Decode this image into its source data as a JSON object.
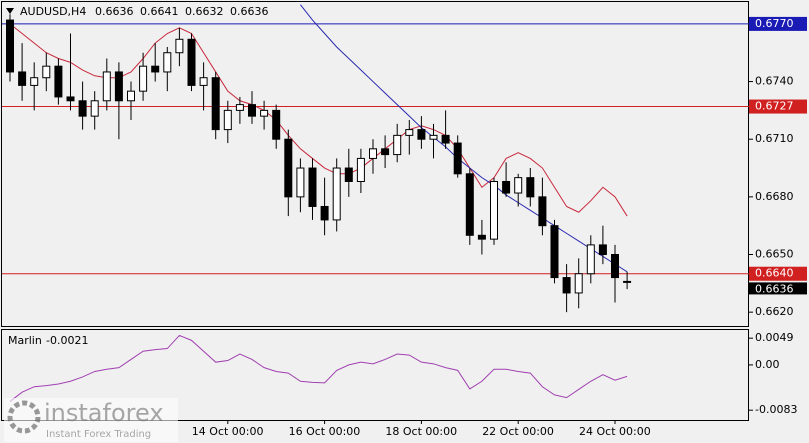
{
  "chart_data": {
    "type": "candlestick",
    "symbol": "AUDUSD,H4",
    "categories": [
      null,
      null,
      null,
      null,
      null,
      null,
      null,
      null,
      null,
      null,
      null,
      null,
      null,
      null,
      null,
      null,
      null,
      null,
      "14 Oct 00:00",
      null,
      null,
      null,
      null,
      null,
      null,
      null,
      "16 Oct 00:00",
      null,
      null,
      null,
      null,
      null,
      null,
      null,
      "18 Oct 00:00",
      null,
      null,
      null,
      null,
      null,
      null,
      null,
      "22 Oct 00:00",
      null,
      null,
      null,
      null,
      null,
      null,
      null,
      "24 Oct 00:00",
      null
    ],
    "open": [
      0.6772,
      0.6745,
      0.6738,
      0.6742,
      0.6748,
      0.6732,
      0.673,
      0.6722,
      0.673,
      0.6745,
      0.673,
      0.6735,
      0.6748,
      0.6745,
      0.6755,
      0.6762,
      0.6738,
      0.6742,
      0.6715,
      0.6725,
      0.6728,
      0.6722,
      0.6725,
      0.671,
      0.668,
      0.6695,
      0.6675,
      0.6668,
      0.6695,
      0.6688,
      0.67,
      0.6705,
      0.6702,
      0.6712,
      0.6715,
      0.671,
      0.6712,
      0.6708,
      0.6692,
      0.666,
      0.6658,
      0.6688,
      0.6682,
      0.669,
      0.668,
      0.6665,
      0.6638,
      0.663,
      0.664,
      0.6655,
      0.665,
      0.6636
    ],
    "high": [
      0.6775,
      0.676,
      0.675,
      0.6755,
      0.6752,
      0.6765,
      0.674,
      0.6735,
      0.6752,
      0.675,
      0.674,
      0.6755,
      0.676,
      0.6758,
      0.6768,
      0.6765,
      0.675,
      0.6745,
      0.673,
      0.6732,
      0.6735,
      0.673,
      0.6728,
      0.6715,
      0.67,
      0.67,
      0.669,
      0.67,
      0.6705,
      0.6705,
      0.671,
      0.6712,
      0.6718,
      0.672,
      0.6722,
      0.6718,
      0.6725,
      0.6712,
      0.6695,
      0.6668,
      0.669,
      0.6698,
      0.6692,
      0.6695,
      0.669,
      0.6668,
      0.6645,
      0.6648,
      0.666,
      0.6665,
      0.6655,
      0.6641
    ],
    "low": [
      0.674,
      0.673,
      0.6725,
      0.6735,
      0.6728,
      0.6725,
      0.6715,
      0.6715,
      0.6725,
      0.671,
      0.672,
      0.673,
      0.674,
      0.6735,
      0.6748,
      0.6735,
      0.6725,
      0.671,
      0.6708,
      0.6718,
      0.6718,
      0.6715,
      0.6705,
      0.667,
      0.6672,
      0.6668,
      0.666,
      0.6662,
      0.668,
      0.6682,
      0.6692,
      0.6695,
      0.6698,
      0.6702,
      0.6705,
      0.67,
      0.6705,
      0.669,
      0.6655,
      0.665,
      0.6655,
      0.668,
      0.6675,
      0.6675,
      0.666,
      0.6635,
      0.662,
      0.6622,
      0.6635,
      0.6645,
      0.6625,
      0.6632
    ],
    "close": [
      0.6745,
      0.6738,
      0.6742,
      0.6748,
      0.6732,
      0.673,
      0.6722,
      0.673,
      0.6745,
      0.673,
      0.6735,
      0.6748,
      0.6745,
      0.6755,
      0.6762,
      0.6738,
      0.6742,
      0.6715,
      0.6725,
      0.6728,
      0.6722,
      0.6725,
      0.671,
      0.668,
      0.6695,
      0.6675,
      0.6668,
      0.6695,
      0.6688,
      0.67,
      0.6705,
      0.6702,
      0.6712,
      0.6715,
      0.671,
      0.6712,
      0.6708,
      0.6692,
      0.666,
      0.6658,
      0.6688,
      0.6682,
      0.669,
      0.668,
      0.6665,
      0.6638,
      0.663,
      0.664,
      0.6655,
      0.665,
      0.6638,
      0.6636
    ],
    "lines": [
      {
        "color": "#c8283c",
        "values": [
          0.677,
          0.6765,
          0.676,
          0.6755,
          0.6752,
          0.675,
          0.6746,
          0.6743,
          0.6742,
          0.6742,
          0.6745,
          0.6752,
          0.676,
          0.6765,
          0.6768,
          0.6765,
          0.6755,
          0.6745,
          0.6735,
          0.673,
          0.6728,
          0.6725,
          0.672,
          0.6712,
          0.6705,
          0.67,
          0.6695,
          0.6692,
          0.6692,
          0.6695,
          0.67,
          0.6705,
          0.671,
          0.6715,
          0.6717,
          0.6715,
          0.6712,
          0.6705,
          0.6695,
          0.6685,
          0.669,
          0.67,
          0.6703,
          0.67,
          0.6695,
          0.6685,
          0.6675,
          0.6672,
          0.6678,
          0.6685,
          0.668,
          0.667
        ]
      },
      {
        "color": "#2a2ab0",
        "values": [
          null,
          null,
          null,
          null,
          null,
          null,
          null,
          null,
          null,
          null,
          null,
          null,
          null,
          null,
          null,
          null,
          null,
          null,
          null,
          null,
          null,
          null,
          null,
          null,
          0.678,
          0.6772,
          0.6765,
          0.6758,
          0.6752,
          0.6746,
          0.674,
          0.6734,
          0.6728,
          0.6722,
          0.6716,
          0.6711,
          0.6706,
          0.67,
          0.6695,
          0.669,
          0.6686,
          0.6681,
          0.6677,
          0.6673,
          0.6669,
          0.6665,
          0.6661,
          0.6657,
          0.6653,
          0.6649,
          0.6645,
          0.6641
        ]
      }
    ],
    "levels": [
      {
        "value": 0.677,
        "label": "0.6770",
        "color": "#1a1ab4"
      },
      {
        "value": 0.6727,
        "color": "#d02020"
      },
      {
        "value": 0.664,
        "label": "0.6640",
        "color": "#d02020"
      }
    ],
    "ylim": [
      0.66128,
      0.67814
    ],
    "yticks": [
      {
        "value": 0.674,
        "label": "0.6740"
      },
      {
        "value": 0.671,
        "label": "0.6710"
      },
      {
        "value": 0.668,
        "label": "0.6680"
      },
      {
        "value": 0.665,
        "label": "0.6650"
      },
      {
        "value": 0.662,
        "label": "0.6620"
      }
    ],
    "indicator": {
      "name": "Marlin",
      "color": "#a040b0",
      "values": [
        -0.0067,
        -0.005,
        -0.004,
        -0.0038,
        -0.0035,
        -0.003,
        -0.0022,
        -0.0012,
        -0.0008,
        -0.0005,
        0.001,
        0.0025,
        0.0028,
        0.003,
        0.0054,
        0.0045,
        0.0025,
        0.0005,
        0.0008,
        0.002,
        0.001,
        -0.0005,
        -0.0012,
        -0.0015,
        -0.003,
        -0.0032,
        -0.0033,
        -0.001,
        0.0,
        0.0005,
        0.0002,
        0.001,
        0.002,
        0.0018,
        0.0005,
        0.0002,
        -0.0005,
        -0.001,
        -0.0044,
        -0.003,
        -0.0008,
        -0.0008,
        -0.0012,
        -0.0015,
        -0.004,
        -0.0055,
        -0.006,
        -0.0045,
        -0.003,
        -0.0018,
        -0.0028,
        -0.0021
      ],
      "ylim": [
        -0.0101,
        0.0064
      ],
      "yticks": [
        0.0049,
        {
          "value": 0,
          "label": "0.00"
        },
        -0.0083
      ]
    }
  },
  "watermark": {
    "brand": "instaforex",
    "tagline": "Instant Forex Trading"
  }
}
